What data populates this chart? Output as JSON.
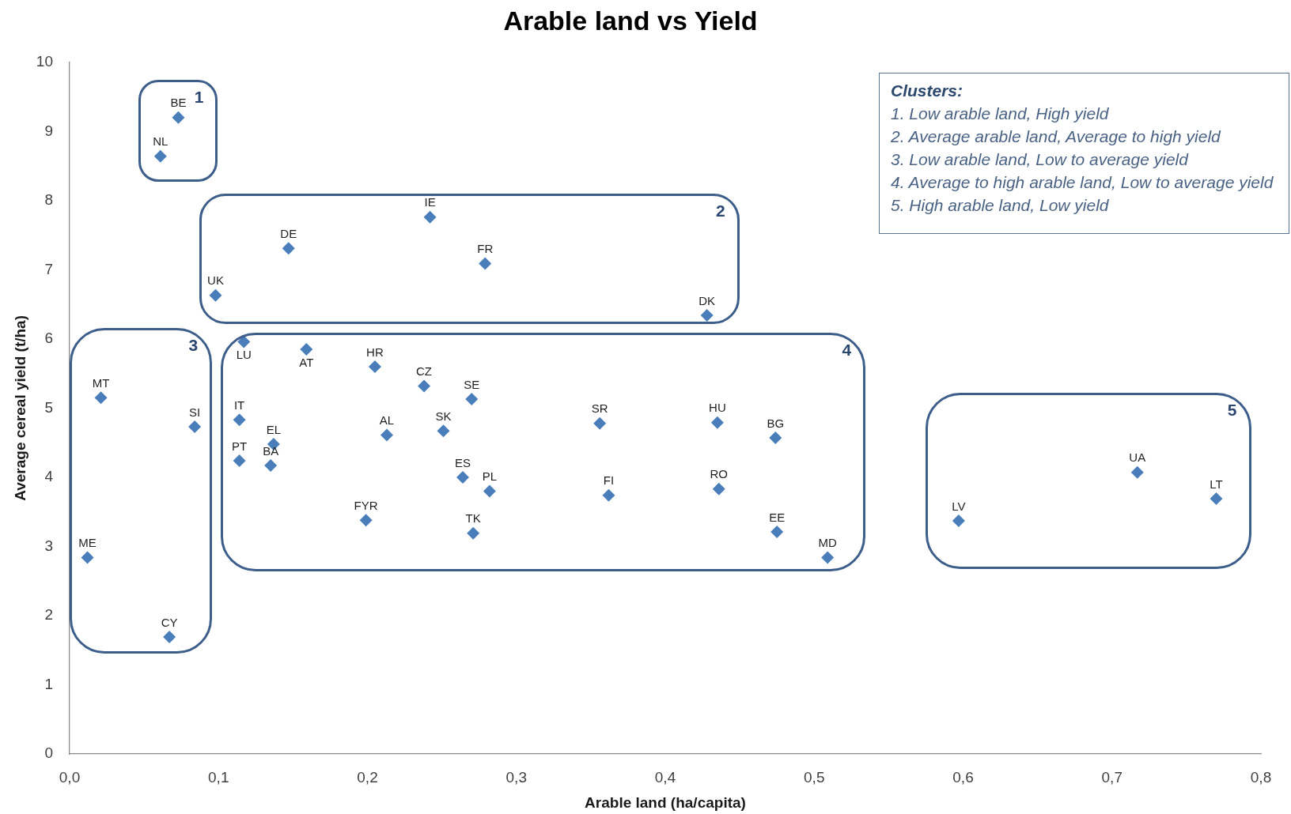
{
  "chart_data": {
    "type": "scatter",
    "title": "Arable land vs Yield",
    "xlabel": "Arable land (ha/capita)",
    "ylabel": "Average cereal yield (t/ha)",
    "xlim": [
      0,
      0.8
    ],
    "xticks": [
      {
        "value": 0,
        "label": "0,0"
      },
      {
        "value": 0.1,
        "label": "0,1"
      },
      {
        "value": 0.2,
        "label": "0,2"
      },
      {
        "value": 0.3,
        "label": "0,3"
      },
      {
        "value": 0.4,
        "label": "0,4"
      },
      {
        "value": 0.5,
        "label": "0,5"
      },
      {
        "value": 0.6,
        "label": "0,6"
      },
      {
        "value": 0.7,
        "label": "0,7"
      },
      {
        "value": 0.8,
        "label": "0,8"
      }
    ],
    "ylim": [
      0,
      10
    ],
    "yticks": [
      0,
      1,
      2,
      3,
      4,
      5,
      6,
      7,
      8,
      9,
      10
    ],
    "marker": "diamond",
    "series": [
      {
        "color": "#4a7ebb",
        "x": [
          0.073,
          0.061
        ],
        "values": [
          9.2,
          8.64
        ]
      },
      {
        "color": "#4a7ebb",
        "x": [
          0.242,
          0.147,
          0.279,
          0.098,
          0.428
        ],
        "values": [
          7.76,
          7.31,
          7.09,
          6.63,
          6.34
        ]
      },
      {
        "color": "#4a7ebb",
        "x": [
          0.021,
          0.084,
          0.012,
          0.067
        ],
        "values": [
          5.15,
          4.73,
          2.84,
          1.69
        ]
      },
      {
        "color": "#4a7ebb",
        "x": [
          0.117,
          0.159,
          0.205,
          0.238,
          0.27,
          0.114,
          0.137,
          0.213,
          0.251,
          0.356,
          0.435,
          0.474,
          0.114,
          0.135,
          0.264,
          0.282,
          0.362,
          0.436,
          0.199,
          0.271,
          0.475,
          0.509
        ],
        "values": [
          5.96,
          5.85,
          5.6,
          5.32,
          5.13,
          4.83,
          4.48,
          4.61,
          4.67,
          4.78,
          4.79,
          4.57,
          4.24,
          4.17,
          4.0,
          3.8,
          3.74,
          3.83,
          3.38,
          3.19,
          3.21,
          2.84
        ]
      },
      {
        "color": "#4a7ebb",
        "x": [
          0.597,
          0.717,
          0.77
        ],
        "values": [
          3.37,
          4.07,
          3.69
        ]
      }
    ],
    "annotations": [
      {
        "text": "BE",
        "x": 0.073,
        "y": 9.2
      },
      {
        "text": "NL",
        "x": 0.061,
        "y": 8.64
      },
      {
        "text": "IE",
        "x": 0.242,
        "y": 7.76
      },
      {
        "text": "DE",
        "x": 0.147,
        "y": 7.31
      },
      {
        "text": "FR",
        "x": 0.279,
        "y": 7.09
      },
      {
        "text": "UK",
        "x": 0.098,
        "y": 6.63
      },
      {
        "text": "DK",
        "x": 0.428,
        "y": 6.34
      },
      {
        "text": "MT",
        "x": 0.021,
        "y": 5.15
      },
      {
        "text": "SI",
        "x": 0.084,
        "y": 4.73
      },
      {
        "text": "ME",
        "x": 0.012,
        "y": 2.84
      },
      {
        "text": "CY",
        "x": 0.067,
        "y": 1.69
      },
      {
        "text": "LU",
        "x": 0.117,
        "y": 5.96
      },
      {
        "text": "AT",
        "x": 0.159,
        "y": 5.85
      },
      {
        "text": "HR",
        "x": 0.205,
        "y": 5.6
      },
      {
        "text": "CZ",
        "x": 0.238,
        "y": 5.32
      },
      {
        "text": "SE",
        "x": 0.27,
        "y": 5.13
      },
      {
        "text": "IT",
        "x": 0.114,
        "y": 4.83
      },
      {
        "text": "EL",
        "x": 0.137,
        "y": 4.48
      },
      {
        "text": "AL",
        "x": 0.213,
        "y": 4.61
      },
      {
        "text": "SK",
        "x": 0.251,
        "y": 4.67
      },
      {
        "text": "SR",
        "x": 0.356,
        "y": 4.78
      },
      {
        "text": "HU",
        "x": 0.435,
        "y": 4.79
      },
      {
        "text": "BG",
        "x": 0.474,
        "y": 4.57
      },
      {
        "text": "PT",
        "x": 0.114,
        "y": 4.24
      },
      {
        "text": "BA",
        "x": 0.135,
        "y": 4.17
      },
      {
        "text": "ES",
        "x": 0.264,
        "y": 4.0
      },
      {
        "text": "PL",
        "x": 0.282,
        "y": 3.8
      },
      {
        "text": "FI",
        "x": 0.362,
        "y": 3.74
      },
      {
        "text": "RO",
        "x": 0.436,
        "y": 3.83
      },
      {
        "text": "FYR",
        "x": 0.199,
        "y": 3.38
      },
      {
        "text": "TK",
        "x": 0.271,
        "y": 3.19
      },
      {
        "text": "EE",
        "x": 0.475,
        "y": 3.21
      },
      {
        "text": "MD",
        "x": 0.509,
        "y": 2.84
      },
      {
        "text": "LV",
        "x": 0.597,
        "y": 3.37
      },
      {
        "text": "UA",
        "x": 0.717,
        "y": 4.07
      },
      {
        "text": "LT",
        "x": 0.77,
        "y": 3.69
      },
      "1",
      "2",
      "3",
      "4",
      "5",
      "Clusters:",
      "1. Low arable land, High yield",
      "2. Average arable land, Average to high yield",
      "3. Low arable land, Low to average yield",
      "4. Average to high arable land, Low to average yield",
      "5. High arable land, Low yield"
    ]
  }
}
